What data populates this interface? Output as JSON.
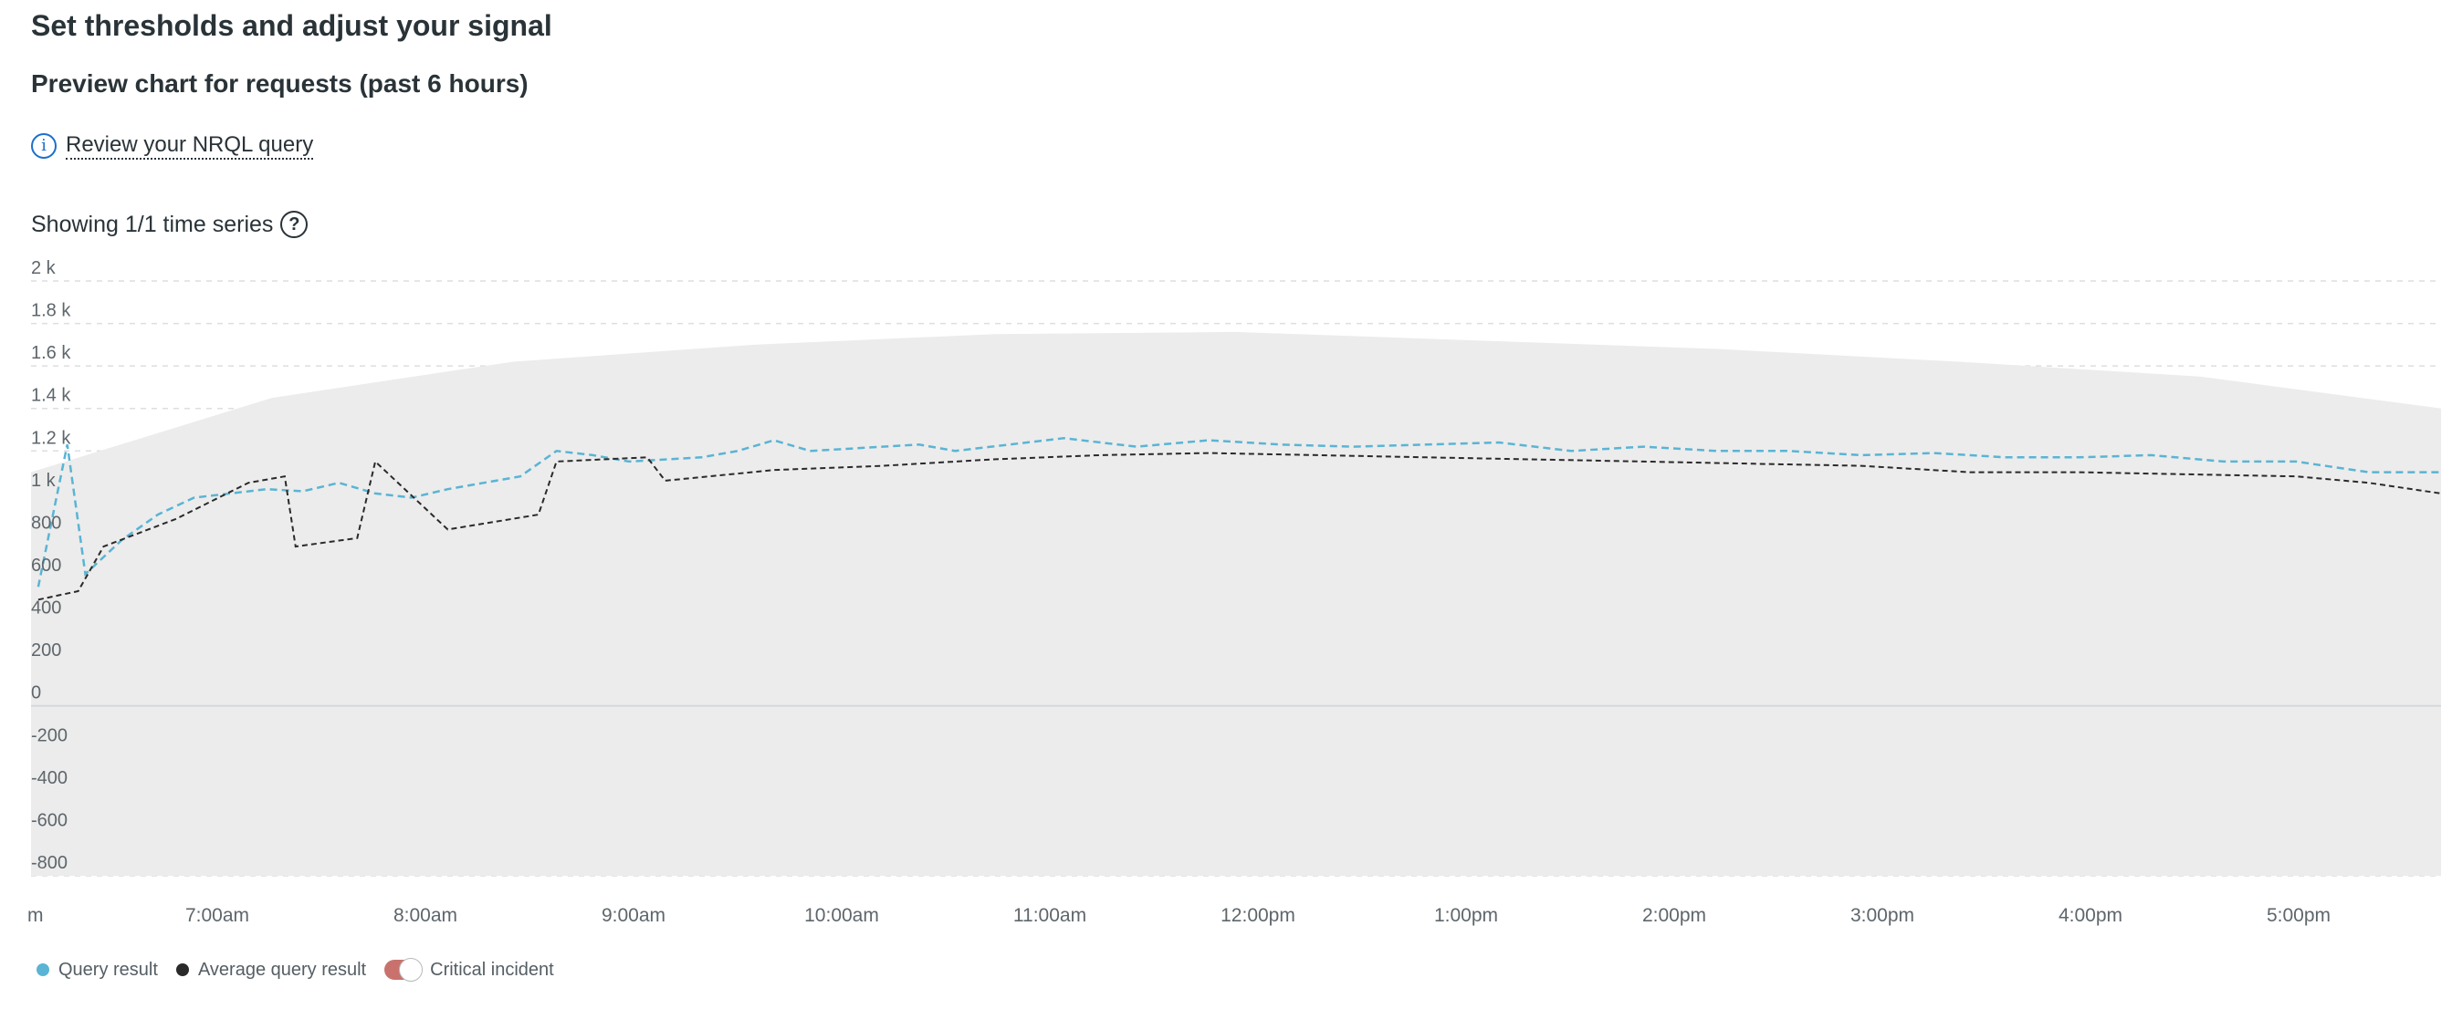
{
  "header": {
    "title": "Set thresholds and adjust your signal",
    "subtitle": "Preview chart for requests (past 6 hours)",
    "query_link": "Review your NRQL query",
    "series_status": "Showing 1/1 time series"
  },
  "icons": {
    "info": "info-circle-icon",
    "help": "question-circle-icon"
  },
  "colors": {
    "query_result": "#5ab4d4",
    "average": "#2a2a2a",
    "band": "#ececec",
    "critical": "#c9726d"
  },
  "legend": {
    "query_result": "Query result",
    "average": "Average query result",
    "critical": "Critical incident"
  },
  "chart_data": {
    "type": "line",
    "title": "",
    "xlabel": "",
    "ylabel": "",
    "x_ticks": [
      "m",
      "7:00am",
      "8:00am",
      "9:00am",
      "10:00am",
      "11:00am",
      "12:00pm",
      "1:00pm",
      "2:00pm",
      "3:00pm",
      "4:00pm",
      "5:00pm"
    ],
    "y_ticks": [
      "2 k",
      "1.8 k",
      "1.6 k",
      "1.4 k",
      "1.2 k",
      "1 k",
      "800",
      "600",
      "400",
      "200",
      "0",
      "-200",
      "-400",
      "-600",
      "-800"
    ],
    "ylim": [
      -800,
      2000
    ],
    "x_range": [
      "6:35am",
      "5:40pm"
    ],
    "grid": true,
    "legend_position": "bottom-left",
    "series": [
      {
        "name": "Query result",
        "style": "dashed",
        "x": [
          "6:37am",
          "6:45am",
          "6:50am",
          "7:00am",
          "7:10am",
          "7:20am",
          "7:30am",
          "7:40am",
          "7:50am",
          "8:00am",
          "8:10am",
          "8:20am",
          "8:30am",
          "8:40am",
          "8:50am",
          "9:00am",
          "9:10am",
          "9:20am",
          "9:30am",
          "9:40am",
          "9:50am",
          "10:00am",
          "10:10am",
          "10:20am",
          "10:30am",
          "10:40am",
          "10:50am",
          "11:00am",
          "11:20am",
          "11:40am",
          "12:00pm",
          "12:20pm",
          "12:40pm",
          "1:00pm",
          "1:20pm",
          "1:40pm",
          "2:00pm",
          "2:20pm",
          "2:40pm",
          "3:00pm",
          "3:20pm",
          "3:40pm",
          "4:00pm",
          "4:20pm",
          "4:40pm",
          "5:00pm",
          "5:20pm",
          "5:40pm"
        ],
        "values": [
          560,
          1230,
          620,
          780,
          900,
          980,
          1000,
          1020,
          1010,
          1050,
          1000,
          980,
          1020,
          1050,
          1080,
          1200,
          1180,
          1150,
          1160,
          1170,
          1200,
          1250,
          1200,
          1210,
          1220,
          1230,
          1200,
          1220,
          1260,
          1220,
          1250,
          1230,
          1220,
          1230,
          1240,
          1200,
          1220,
          1200,
          1200,
          1180,
          1190,
          1170,
          1170,
          1180,
          1150,
          1150,
          1100,
          1100
        ]
      },
      {
        "name": "Average query result",
        "style": "dashed",
        "x": [
          "6:37am",
          "6:48am",
          "6:55am",
          "7:15am",
          "7:35am",
          "7:45am",
          "7:48am",
          "8:05am",
          "8:10am",
          "8:30am",
          "8:55am",
          "9:00am",
          "9:25am",
          "9:30am",
          "10:00am",
          "10:30am",
          "11:00am",
          "11:30am",
          "12:00pm",
          "12:30pm",
          "1:00pm",
          "1:30pm",
          "2:00pm",
          "2:30pm",
          "3:00pm",
          "3:30pm",
          "4:00pm",
          "4:30pm",
          "5:00pm",
          "5:20pm",
          "5:40pm"
        ],
        "values": [
          500,
          540,
          750,
          880,
          1050,
          1080,
          750,
          790,
          1150,
          830,
          900,
          1150,
          1170,
          1060,
          1110,
          1130,
          1160,
          1180,
          1190,
          1180,
          1170,
          1160,
          1150,
          1140,
          1130,
          1100,
          1100,
          1090,
          1080,
          1050,
          1000
        ]
      }
    ]
  }
}
